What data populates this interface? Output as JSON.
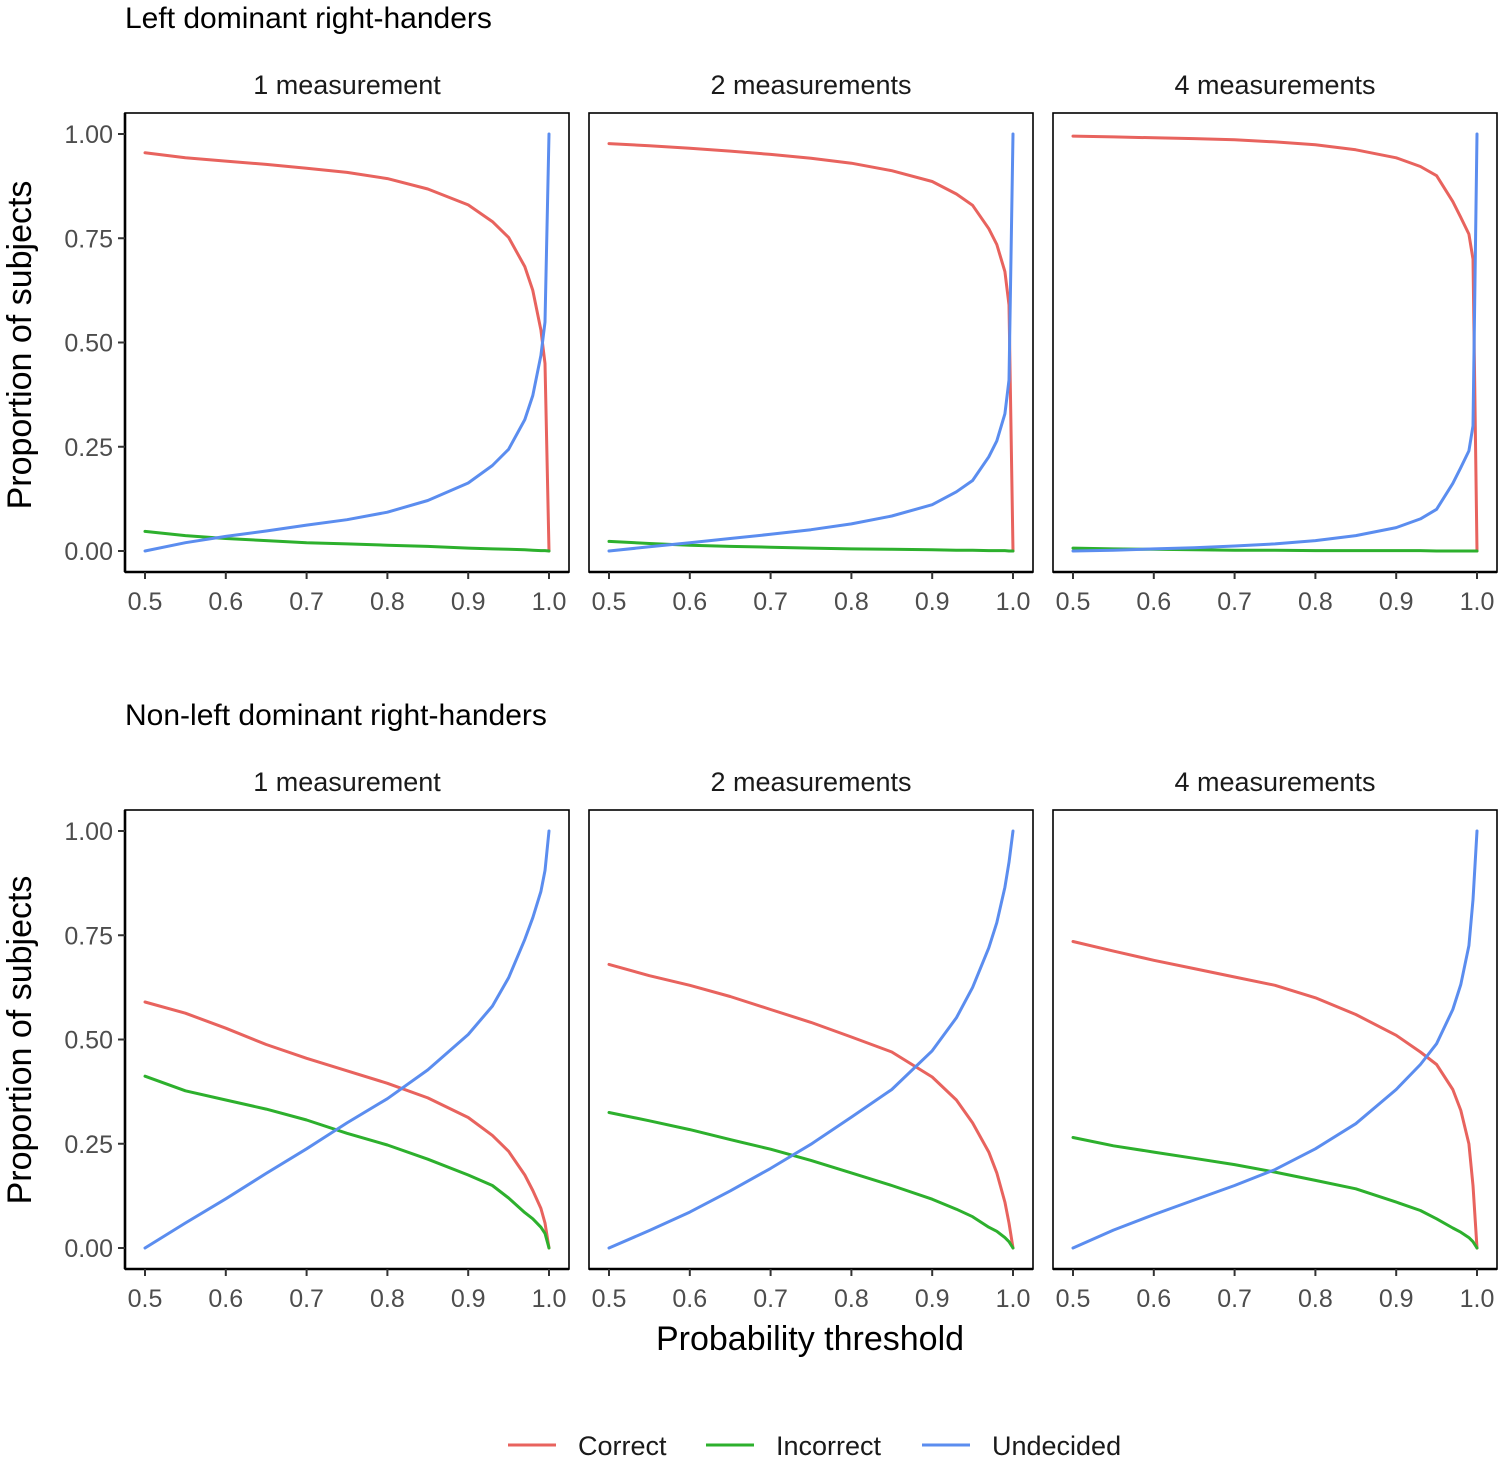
{
  "chart_data": {
    "type": "line",
    "xlabel": "Probability threshold",
    "ylabel": "Proportion of subjects",
    "xlim": [
      0.5,
      1.0
    ],
    "ylim": [
      0,
      1
    ],
    "x_ticks": [
      "0.5",
      "0.6",
      "0.7",
      "0.8",
      "0.9",
      "1.0"
    ],
    "y_ticks": [
      "0.00",
      "0.25",
      "0.50",
      "0.75",
      "1.00"
    ],
    "legend_position": "bottom",
    "legend": [
      {
        "name": "Correct",
        "color": "#E8635E"
      },
      {
        "name": "Incorrect",
        "color": "#2DB02D"
      },
      {
        "name": "Undecided",
        "color": "#5B8DEF"
      }
    ],
    "x": [
      0.5,
      0.55,
      0.6,
      0.65,
      0.7,
      0.75,
      0.8,
      0.85,
      0.9,
      0.93,
      0.95,
      0.97,
      0.98,
      0.99,
      0.995,
      1.0
    ],
    "groups": [
      {
        "title": "Left dominant right-handers",
        "facets": [
          {
            "label": "1 measurement",
            "series": [
              {
                "name": "Correct",
                "values": [
                  0.955,
                  0.943,
                  0.935,
                  0.927,
                  0.918,
                  0.908,
                  0.893,
                  0.868,
                  0.83,
                  0.79,
                  0.752,
                  0.682,
                  0.625,
                  0.53,
                  0.45,
                  0.0
                ]
              },
              {
                "name": "Incorrect",
                "values": [
                  0.047,
                  0.037,
                  0.03,
                  0.025,
                  0.02,
                  0.017,
                  0.014,
                  0.011,
                  0.007,
                  0.005,
                  0.004,
                  0.003,
                  0.002,
                  0.001,
                  0.001,
                  0.0
                ]
              },
              {
                "name": "Undecided",
                "values": [
                  0.0,
                  0.02,
                  0.035,
                  0.048,
                  0.062,
                  0.075,
                  0.093,
                  0.121,
                  0.163,
                  0.205,
                  0.244,
                  0.315,
                  0.373,
                  0.469,
                  0.549,
                  1.0
                ]
              }
            ]
          },
          {
            "label": "2 measurements",
            "series": [
              {
                "name": "Correct",
                "values": [
                  0.977,
                  0.972,
                  0.966,
                  0.959,
                  0.951,
                  0.942,
                  0.93,
                  0.912,
                  0.886,
                  0.856,
                  0.829,
                  0.773,
                  0.735,
                  0.67,
                  0.59,
                  0.0
                ]
              },
              {
                "name": "Incorrect",
                "values": [
                  0.023,
                  0.018,
                  0.014,
                  0.011,
                  0.009,
                  0.007,
                  0.005,
                  0.004,
                  0.003,
                  0.002,
                  0.002,
                  0.001,
                  0.001,
                  0.001,
                  0.0,
                  0.0
                ]
              },
              {
                "name": "Undecided",
                "values": [
                  0.0,
                  0.01,
                  0.02,
                  0.03,
                  0.04,
                  0.051,
                  0.065,
                  0.084,
                  0.111,
                  0.142,
                  0.169,
                  0.226,
                  0.264,
                  0.329,
                  0.41,
                  1.0
                ]
              }
            ]
          },
          {
            "label": "4 measurements",
            "series": [
              {
                "name": "Correct",
                "values": [
                  0.995,
                  0.993,
                  0.991,
                  0.989,
                  0.986,
                  0.981,
                  0.974,
                  0.962,
                  0.943,
                  0.922,
                  0.9,
                  0.838,
                  0.8,
                  0.76,
                  0.7,
                  0.0
                ]
              },
              {
                "name": "Incorrect",
                "values": [
                  0.007,
                  0.005,
                  0.004,
                  0.003,
                  0.002,
                  0.002,
                  0.001,
                  0.001,
                  0.001,
                  0.001,
                  0.0,
                  0.0,
                  0.0,
                  0.0,
                  0.0,
                  0.0
                ]
              },
              {
                "name": "Undecided",
                "values": [
                  0.0,
                  0.002,
                  0.005,
                  0.008,
                  0.012,
                  0.017,
                  0.025,
                  0.037,
                  0.056,
                  0.077,
                  0.1,
                  0.162,
                  0.2,
                  0.24,
                  0.3,
                  1.0
                ]
              }
            ]
          }
        ]
      },
      {
        "title": "Non-left dominant right-handers",
        "facets": [
          {
            "label": "1 measurement",
            "series": [
              {
                "name": "Correct",
                "values": [
                  0.59,
                  0.563,
                  0.527,
                  0.488,
                  0.455,
                  0.425,
                  0.395,
                  0.36,
                  0.313,
                  0.27,
                  0.232,
                  0.175,
                  0.138,
                  0.095,
                  0.06,
                  0.0
                ]
              },
              {
                "name": "Incorrect",
                "values": [
                  0.412,
                  0.377,
                  0.355,
                  0.333,
                  0.307,
                  0.275,
                  0.247,
                  0.213,
                  0.175,
                  0.15,
                  0.12,
                  0.085,
                  0.07,
                  0.05,
                  0.035,
                  0.0
                ]
              },
              {
                "name": "Undecided",
                "values": [
                  0.0,
                  0.06,
                  0.118,
                  0.179,
                  0.238,
                  0.3,
                  0.358,
                  0.427,
                  0.512,
                  0.58,
                  0.648,
                  0.74,
                  0.792,
                  0.855,
                  0.905,
                  1.0
                ]
              }
            ]
          },
          {
            "label": "2 measurements",
            "series": [
              {
                "name": "Correct",
                "values": [
                  0.68,
                  0.653,
                  0.63,
                  0.603,
                  0.572,
                  0.541,
                  0.506,
                  0.47,
                  0.41,
                  0.355,
                  0.3,
                  0.23,
                  0.18,
                  0.11,
                  0.06,
                  0.0
                ]
              },
              {
                "name": "Incorrect",
                "values": [
                  0.325,
                  0.305,
                  0.284,
                  0.26,
                  0.237,
                  0.21,
                  0.18,
                  0.15,
                  0.117,
                  0.093,
                  0.075,
                  0.05,
                  0.04,
                  0.025,
                  0.015,
                  0.0
                ]
              },
              {
                "name": "Undecided",
                "values": [
                  0.0,
                  0.042,
                  0.086,
                  0.137,
                  0.191,
                  0.249,
                  0.314,
                  0.38,
                  0.473,
                  0.552,
                  0.625,
                  0.72,
                  0.78,
                  0.865,
                  0.925,
                  1.0
                ]
              }
            ]
          },
          {
            "label": "4 measurements",
            "series": [
              {
                "name": "Correct",
                "values": [
                  0.735,
                  0.712,
                  0.69,
                  0.67,
                  0.65,
                  0.63,
                  0.6,
                  0.56,
                  0.51,
                  0.47,
                  0.44,
                  0.38,
                  0.33,
                  0.25,
                  0.15,
                  0.0
                ]
              },
              {
                "name": "Incorrect",
                "values": [
                  0.265,
                  0.245,
                  0.23,
                  0.215,
                  0.2,
                  0.182,
                  0.162,
                  0.142,
                  0.11,
                  0.09,
                  0.07,
                  0.048,
                  0.038,
                  0.025,
                  0.015,
                  0.0
                ]
              },
              {
                "name": "Undecided",
                "values": [
                  0.0,
                  0.043,
                  0.08,
                  0.115,
                  0.15,
                  0.188,
                  0.238,
                  0.298,
                  0.38,
                  0.44,
                  0.49,
                  0.572,
                  0.632,
                  0.725,
                  0.835,
                  1.0
                ]
              }
            ]
          }
        ]
      }
    ]
  }
}
